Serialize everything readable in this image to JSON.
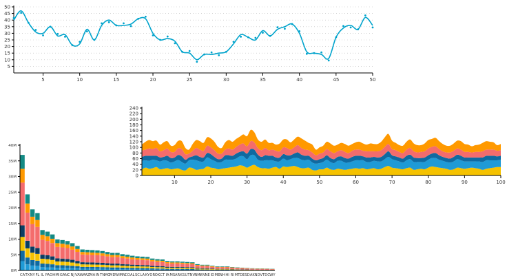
{
  "chart_data": [
    {
      "type": "line",
      "title": "",
      "xlabel": "",
      "ylabel": "",
      "xlim": [
        1,
        50
      ],
      "ylim": [
        0,
        50
      ],
      "x_ticks": [
        "5",
        "10",
        "15",
        "20",
        "25",
        "30",
        "35",
        "40",
        "45",
        "50"
      ],
      "y_ticks": [
        "5",
        "10",
        "15",
        "20",
        "25",
        "30",
        "35",
        "40",
        "45",
        "50"
      ],
      "grid": "horizontal-dotted",
      "line_color": "#00a3cc",
      "series": [
        {
          "name": "",
          "x": [
            1,
            2,
            3,
            4,
            5,
            6,
            7,
            8,
            9,
            10,
            11,
            12,
            13,
            14,
            15,
            16,
            17,
            18,
            19,
            20,
            21,
            22,
            23,
            24,
            25,
            26,
            27,
            28,
            29,
            30,
            31,
            32,
            33,
            34,
            35,
            36,
            37,
            38,
            39,
            40,
            41,
            42,
            43,
            44,
            45,
            46,
            47,
            48,
            49,
            50
          ],
          "y": [
            40,
            47,
            38,
            31,
            30,
            35,
            28,
            29,
            21,
            22,
            33,
            25,
            36,
            40,
            36,
            36,
            37,
            41,
            41,
            30,
            25,
            26,
            24,
            16,
            15,
            10,
            14,
            14,
            15,
            16,
            22,
            29,
            27,
            25,
            32,
            28,
            33,
            35,
            37,
            30,
            16,
            15,
            14,
            11,
            27,
            34,
            36,
            33,
            42,
            36
          ]
        }
      ]
    },
    {
      "type": "area",
      "stacked": true,
      "title": "",
      "xlabel": "",
      "ylabel": "",
      "xlim": [
        1,
        100
      ],
      "ylim": [
        0,
        240
      ],
      "x_ticks": [
        "10",
        "20",
        "30",
        "40",
        "50",
        "60",
        "70",
        "80",
        "90",
        "100"
      ],
      "y_ticks": [
        "0",
        "20",
        "40",
        "60",
        "80",
        "100",
        "120",
        "140",
        "160",
        "180",
        "200",
        "220",
        "240"
      ],
      "grid": false,
      "colors": [
        "#f5c200",
        "#1f9ad6",
        "#0f6aa1",
        "#f46c6c",
        "#ff9900"
      ],
      "series": [
        {
          "name": "",
          "values": [
            22,
            28,
            24,
            26,
            30,
            22,
            24,
            26,
            22,
            24,
            25,
            20,
            18,
            28,
            26,
            20,
            22,
            24,
            32,
            28,
            26,
            22,
            24,
            26,
            28,
            30,
            32,
            36,
            34,
            28,
            34,
            38,
            30,
            26,
            26,
            24,
            28,
            30,
            24,
            32,
            30,
            32,
            34,
            30,
            26,
            26,
            28,
            20,
            18,
            22,
            22,
            28,
            22,
            20,
            24,
            22,
            20,
            22,
            24,
            26,
            24,
            26,
            22,
            24,
            26,
            22,
            24,
            30,
            34,
            28,
            26,
            24,
            22,
            26,
            28,
            20,
            22,
            24,
            22,
            28,
            32,
            30,
            28,
            26,
            24,
            20,
            22,
            28,
            26,
            24,
            26,
            28,
            26,
            24,
            20,
            24,
            26,
            28,
            30,
            30
          ]
        },
        {
          "name": "",
          "values": [
            30,
            26,
            28,
            30,
            24,
            28,
            30,
            26,
            24,
            26,
            30,
            28,
            24,
            26,
            30,
            34,
            28,
            26,
            32,
            30,
            26,
            24,
            24,
            30,
            28,
            26,
            28,
            32,
            34,
            30,
            38,
            34,
            26,
            26,
            28,
            30,
            26,
            20,
            26,
            28,
            24,
            26,
            28,
            32,
            30,
            28,
            28,
            26,
            24,
            22,
            26,
            28,
            26,
            24,
            28,
            30,
            26,
            24,
            26,
            28,
            30,
            28,
            26,
            24,
            26,
            28,
            26,
            28,
            32,
            30,
            28,
            26,
            24,
            28,
            30,
            28,
            26,
            24,
            26,
            28,
            30,
            32,
            28,
            26,
            24,
            26,
            28,
            30,
            28,
            26,
            24,
            22,
            24,
            26,
            28,
            30,
            28,
            26,
            24,
            26
          ]
        },
        {
          "name": "",
          "values": [
            14,
            16,
            18,
            14,
            16,
            14,
            12,
            18,
            16,
            14,
            18,
            20,
            14,
            10,
            12,
            18,
            16,
            14,
            16,
            18,
            14,
            12,
            12,
            16,
            16,
            14,
            18,
            16,
            18,
            20,
            22,
            20,
            18,
            14,
            18,
            16,
            16,
            14,
            14,
            16,
            18,
            14,
            16,
            20,
            18,
            16,
            14,
            14,
            12,
            14,
            14,
            16,
            14,
            14,
            14,
            16,
            16,
            14,
            16,
            16,
            16,
            14,
            16,
            16,
            14,
            14,
            16,
            18,
            20,
            14,
            14,
            14,
            14,
            16,
            16,
            16,
            14,
            14,
            16,
            16,
            16,
            18,
            16,
            14,
            14,
            14,
            16,
            16,
            16,
            14,
            14,
            14,
            14,
            14,
            16,
            16,
            16,
            16,
            14,
            14
          ]
        },
        {
          "name": "",
          "values": [
            22,
            22,
            26,
            24,
            28,
            22,
            24,
            26,
            22,
            20,
            24,
            26,
            20,
            14,
            20,
            26,
            26,
            24,
            26,
            24,
            24,
            20,
            18,
            20,
            24,
            22,
            24,
            26,
            28,
            26,
            28,
            26,
            24,
            24,
            26,
            20,
            22,
            24,
            22,
            24,
            26,
            20,
            22,
            26,
            24,
            22,
            20,
            22,
            18,
            20,
            20,
            22,
            24,
            22,
            20,
            22,
            22,
            20,
            22,
            22,
            22,
            20,
            22,
            22,
            20,
            22,
            24,
            26,
            26,
            22,
            22,
            20,
            20,
            22,
            24,
            22,
            20,
            22,
            22,
            24,
            24,
            24,
            22,
            20,
            20,
            22,
            22,
            22,
            22,
            20,
            20,
            18,
            20,
            20,
            22,
            22,
            22,
            22,
            20,
            20
          ]
        },
        {
          "name": "",
          "values": [
            22,
            28,
            30,
            28,
            26,
            24,
            28,
            26,
            22,
            24,
            26,
            28,
            22,
            14,
            24,
            28,
            30,
            28,
            30,
            32,
            30,
            24,
            20,
            26,
            30,
            28,
            28,
            28,
            32,
            36,
            40,
            36,
            30,
            30,
            30,
            26,
            24,
            22,
            28,
            28,
            30,
            26,
            28,
            30,
            34,
            32,
            26,
            28,
            20,
            22,
            24,
            26,
            28,
            26,
            24,
            26,
            28,
            26,
            24,
            26,
            28,
            26,
            24,
            28,
            26,
            26,
            30,
            34,
            36,
            30,
            26,
            24,
            26,
            28,
            30,
            28,
            26,
            24,
            28,
            30,
            28,
            30,
            28,
            26,
            24,
            24,
            26,
            28,
            30,
            28,
            26,
            22,
            24,
            26,
            30,
            30,
            28,
            26,
            20,
            22
          ]
        }
      ]
    },
    {
      "type": "bar",
      "stacked": true,
      "title": "",
      "xlabel": "",
      "ylabel": "",
      "ylim": [
        0,
        40000000
      ],
      "y_ticks": [
        "0M",
        "5M",
        "10M",
        "15M",
        "20M",
        "25M",
        "30M",
        "35M",
        "40M"
      ],
      "categories": [
        "CA",
        "TX",
        "NY",
        "FL",
        "IL",
        "PA",
        "OH",
        "MI",
        "GA",
        "NC",
        "NJ",
        "VA",
        "WA",
        "AZ",
        "MA",
        "IN",
        "TN",
        "MO",
        "MD",
        "WI",
        "MN",
        "CO",
        "AL",
        "SC",
        "LA",
        "KY",
        "OR",
        "OK",
        "CT",
        "IA",
        "MS",
        "AR",
        "KS",
        "UT",
        "NV",
        "NM",
        "WV",
        "NE",
        "ID",
        "ME",
        "NH",
        "HI",
        "RI",
        "MT",
        "DE",
        "SD",
        "AK",
        "ND",
        "VT",
        "DC",
        "WY"
      ],
      "totals": [
        36900000,
        24300000,
        19500000,
        18300000,
        12900000,
        12400000,
        11500000,
        9900000,
        9700000,
        9400000,
        8700000,
        7800000,
        6700000,
        6600000,
        6500000,
        6400000,
        6200000,
        5900000,
        5600000,
        5600000,
        5200000,
        5000000,
        4700000,
        4500000,
        4400000,
        4300000,
        3800000,
        3600000,
        3500000,
        3000000,
        2900000,
        2900000,
        2800000,
        2700000,
        2600000,
        2000000,
        1800000,
        1800000,
        1500000,
        1300000,
        1300000,
        1300000,
        1100000,
        970000,
        880000,
        800000,
        690000,
        640000,
        620000,
        590000,
        530000
      ],
      "series_share": [
        0.08,
        0.09,
        0.12,
        0.1,
        0.37,
        0.12,
        0.12
      ],
      "colors": [
        "#1f9ad6",
        "#0f6aa1",
        "#f5c200",
        "#0a3d62",
        "#f46c6c",
        "#ff9900",
        "#138a84"
      ]
    }
  ]
}
